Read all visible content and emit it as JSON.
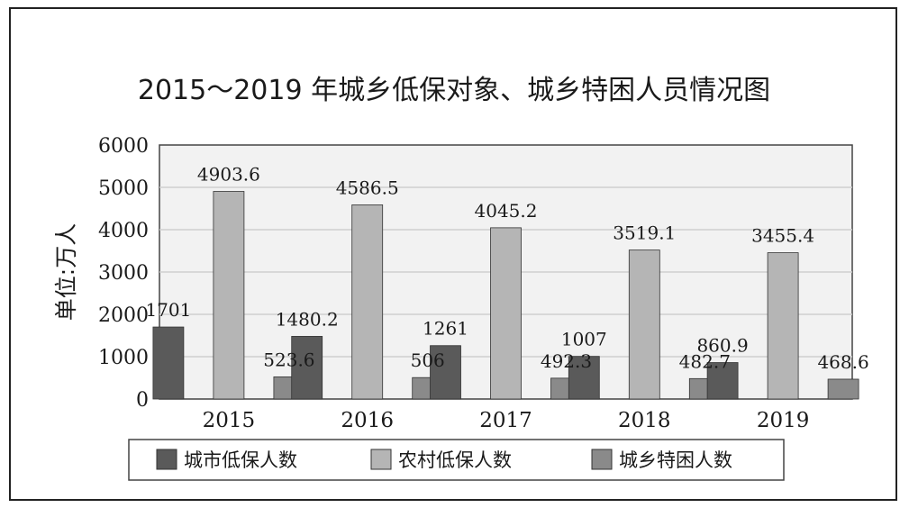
{
  "chart_data": {
    "type": "bar",
    "title": "2015～2019 年城乡低保对象、城乡特困人员情况图",
    "ylabel": "单位:万人",
    "xlabel": "",
    "ylim": [
      0,
      6000
    ],
    "yticks": [
      "0",
      "1000",
      "2000",
      "3000",
      "4000",
      "5000",
      "6000"
    ],
    "categories": [
      "2015",
      "2016",
      "2017",
      "2018",
      "2019"
    ],
    "series": [
      {
        "name": "城市低保人数",
        "values": [
          1701,
          1480.2,
          1261,
          1007,
          860.9
        ],
        "labels": [
          "1701",
          "1480.2",
          "1261",
          "1007",
          "860.9"
        ],
        "color": "#5a5a5a"
      },
      {
        "name": "农村低保人数",
        "values": [
          4903.6,
          4586.5,
          4045.2,
          3519.1,
          3455.4
        ],
        "labels": [
          "4903.6",
          "4586.5",
          "4045.2",
          "3519.1",
          "3455.4"
        ],
        "color": "#b5b5b5"
      },
      {
        "name": "城乡特困人数",
        "values": [
          523.6,
          506,
          492.3,
          482.7,
          468.6
        ],
        "labels": [
          "523.6",
          "506",
          "492.3",
          "482.7",
          "468.6"
        ],
        "color": "#8a8a8a"
      }
    ],
    "grid": true,
    "legend_position": "bottom"
  }
}
